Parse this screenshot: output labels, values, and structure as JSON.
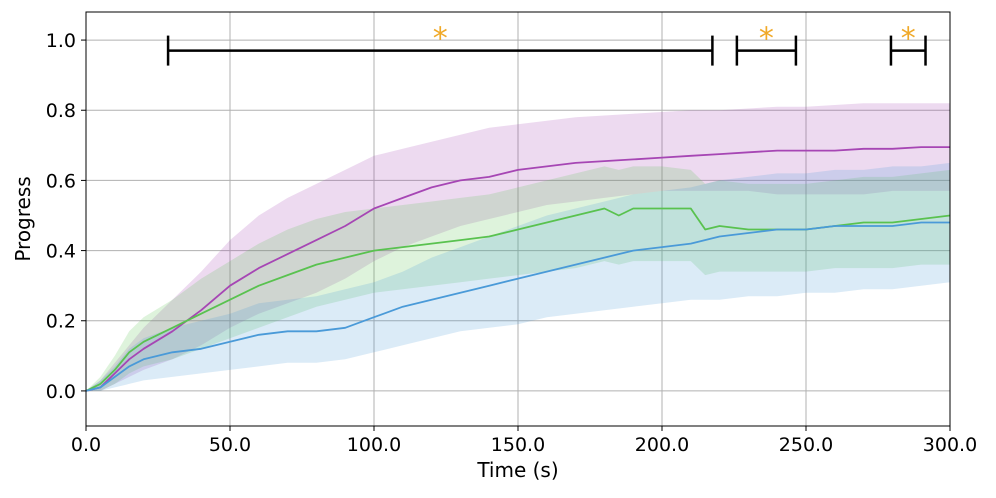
{
  "chart_data": {
    "type": "line",
    "title": "",
    "xlabel": "Time (s)",
    "ylabel": "Progress",
    "xlim": [
      0,
      300
    ],
    "ylim": [
      -0.1,
      1.08
    ],
    "xticks": [
      0,
      50,
      100,
      150,
      200,
      250,
      300
    ],
    "xtick_labels": [
      "0.0",
      "50.0",
      "100.0",
      "150.0",
      "200.0",
      "250.0",
      "300.0"
    ],
    "yticks": [
      0.0,
      0.2,
      0.4,
      0.6,
      0.8,
      1.0
    ],
    "ytick_labels": [
      "0.0",
      "0.2",
      "0.4",
      "0.6",
      "0.8",
      "1.0"
    ],
    "grid": true,
    "legend": "none",
    "series": [
      {
        "color": "#a646b4",
        "x": [
          0,
          5,
          10,
          15,
          20,
          30,
          40,
          50,
          60,
          70,
          80,
          90,
          100,
          110,
          120,
          130,
          140,
          150,
          160,
          170,
          180,
          190,
          200,
          210,
          220,
          230,
          240,
          250,
          260,
          270,
          280,
          290,
          300
        ],
        "y": [
          0,
          0.01,
          0.05,
          0.09,
          0.12,
          0.17,
          0.23,
          0.3,
          0.35,
          0.39,
          0.43,
          0.47,
          0.52,
          0.55,
          0.58,
          0.6,
          0.61,
          0.63,
          0.64,
          0.65,
          0.655,
          0.66,
          0.665,
          0.67,
          0.675,
          0.68,
          0.685,
          0.685,
          0.685,
          0.69,
          0.69,
          0.695,
          0.695
        ],
        "lower": [
          0,
          0.0,
          0.02,
          0.04,
          0.06,
          0.09,
          0.13,
          0.18,
          0.22,
          0.25,
          0.28,
          0.32,
          0.37,
          0.41,
          0.44,
          0.47,
          0.49,
          0.51,
          0.53,
          0.54,
          0.55,
          0.56,
          0.57,
          0.57,
          0.57,
          0.57,
          0.56,
          0.56,
          0.56,
          0.56,
          0.57,
          0.57,
          0.57
        ],
        "upper": [
          0,
          0.03,
          0.08,
          0.13,
          0.18,
          0.26,
          0.34,
          0.43,
          0.5,
          0.55,
          0.59,
          0.63,
          0.67,
          0.69,
          0.71,
          0.73,
          0.75,
          0.76,
          0.77,
          0.78,
          0.785,
          0.79,
          0.795,
          0.8,
          0.8,
          0.805,
          0.81,
          0.81,
          0.815,
          0.82,
          0.82,
          0.82,
          0.82
        ]
      },
      {
        "color": "#59c24f",
        "x": [
          0,
          5,
          10,
          15,
          20,
          30,
          40,
          50,
          60,
          70,
          80,
          90,
          100,
          110,
          120,
          130,
          140,
          150,
          160,
          170,
          180,
          185,
          190,
          200,
          210,
          215,
          220,
          230,
          240,
          250,
          260,
          270,
          280,
          290,
          300
        ],
        "y": [
          0,
          0.02,
          0.06,
          0.11,
          0.14,
          0.18,
          0.22,
          0.26,
          0.3,
          0.33,
          0.36,
          0.38,
          0.4,
          0.41,
          0.42,
          0.43,
          0.44,
          0.46,
          0.48,
          0.5,
          0.52,
          0.5,
          0.52,
          0.52,
          0.52,
          0.46,
          0.47,
          0.46,
          0.46,
          0.46,
          0.47,
          0.48,
          0.48,
          0.49,
          0.5
        ],
        "lower": [
          0,
          0.0,
          0.02,
          0.05,
          0.07,
          0.09,
          0.12,
          0.15,
          0.18,
          0.21,
          0.24,
          0.26,
          0.28,
          0.29,
          0.3,
          0.31,
          0.32,
          0.33,
          0.34,
          0.35,
          0.37,
          0.36,
          0.37,
          0.37,
          0.37,
          0.33,
          0.34,
          0.34,
          0.34,
          0.34,
          0.35,
          0.35,
          0.35,
          0.36,
          0.36
        ],
        "upper": [
          0,
          0.04,
          0.1,
          0.17,
          0.21,
          0.26,
          0.32,
          0.37,
          0.42,
          0.46,
          0.49,
          0.51,
          0.52,
          0.53,
          0.54,
          0.55,
          0.56,
          0.58,
          0.6,
          0.62,
          0.64,
          0.63,
          0.64,
          0.64,
          0.63,
          0.59,
          0.6,
          0.59,
          0.59,
          0.59,
          0.6,
          0.61,
          0.61,
          0.62,
          0.63
        ]
      },
      {
        "color": "#4a9ad8",
        "x": [
          0,
          5,
          10,
          15,
          20,
          30,
          40,
          50,
          60,
          70,
          80,
          90,
          100,
          110,
          120,
          130,
          140,
          150,
          160,
          170,
          180,
          190,
          200,
          210,
          220,
          230,
          240,
          250,
          260,
          270,
          280,
          290,
          300
        ],
        "y": [
          0,
          0.01,
          0.04,
          0.07,
          0.09,
          0.11,
          0.12,
          0.14,
          0.16,
          0.17,
          0.17,
          0.18,
          0.21,
          0.24,
          0.26,
          0.28,
          0.3,
          0.32,
          0.34,
          0.36,
          0.38,
          0.4,
          0.41,
          0.42,
          0.44,
          0.45,
          0.46,
          0.46,
          0.47,
          0.47,
          0.47,
          0.48,
          0.48
        ],
        "lower": [
          0,
          0.0,
          0.01,
          0.02,
          0.03,
          0.04,
          0.05,
          0.06,
          0.07,
          0.08,
          0.08,
          0.09,
          0.11,
          0.13,
          0.15,
          0.17,
          0.18,
          0.19,
          0.21,
          0.22,
          0.23,
          0.24,
          0.25,
          0.26,
          0.26,
          0.27,
          0.27,
          0.28,
          0.28,
          0.29,
          0.29,
          0.3,
          0.31
        ],
        "upper": [
          0,
          0.03,
          0.07,
          0.12,
          0.15,
          0.18,
          0.2,
          0.22,
          0.25,
          0.26,
          0.27,
          0.29,
          0.31,
          0.34,
          0.38,
          0.41,
          0.44,
          0.47,
          0.5,
          0.52,
          0.54,
          0.56,
          0.57,
          0.58,
          0.6,
          0.61,
          0.62,
          0.62,
          0.63,
          0.63,
          0.64,
          0.64,
          0.65
        ]
      }
    ],
    "significance_brackets": [
      {
        "x_start": 28.5,
        "x_end": 217.5,
        "y": 0.97,
        "label": "*"
      },
      {
        "x_start": 226.0,
        "x_end": 246.5,
        "y": 0.97,
        "label": "*"
      },
      {
        "x_start": 279.5,
        "x_end": 291.5,
        "y": 0.97,
        "label": "*"
      }
    ],
    "bracket_color": "#000000",
    "star_color": "#f0a928"
  }
}
